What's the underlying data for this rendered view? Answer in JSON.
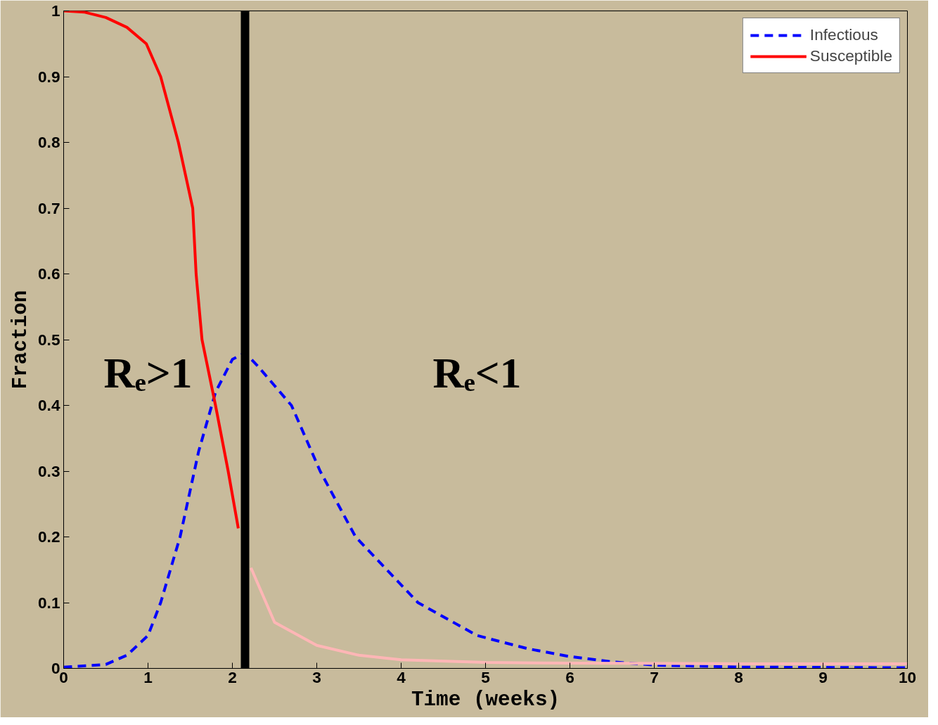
{
  "chart_data": {
    "type": "line",
    "xlabel": "Time (weeks)",
    "ylabel": "Fraction",
    "xlim": [
      0,
      10
    ],
    "ylim": [
      0,
      1
    ],
    "xticks": [
      0,
      1,
      2,
      3,
      4,
      5,
      6,
      7,
      8,
      9,
      10
    ],
    "yticks": [
      0,
      0.1,
      0.2,
      0.3,
      0.4,
      0.5,
      0.6,
      0.7,
      0.8,
      0.9,
      1
    ],
    "grid": false,
    "legend": "top right",
    "series": [
      {
        "name": "Infectious",
        "color": "#0000ff",
        "line_style": "dashed",
        "x": [
          0,
          0.5,
          0.75,
          1,
          1.15,
          1.38,
          1.6,
          1.8,
          2.0,
          2.15,
          2.3,
          2.5,
          2.7,
          3.04,
          3.46,
          4.2,
          4.9,
          5.5,
          6,
          6.5,
          7,
          8,
          10
        ],
        "values": [
          0.002,
          0.006,
          0.02,
          0.05,
          0.1,
          0.2,
          0.33,
          0.42,
          0.47,
          0.48,
          0.46,
          0.43,
          0.4,
          0.3,
          0.2,
          0.1,
          0.05,
          0.03,
          0.018,
          0.01,
          0.005,
          0.002,
          0.001
        ]
      },
      {
        "name": "Susceptible",
        "color": "#ff0000",
        "line_style": "solid",
        "x": [
          0,
          0.25,
          0.5,
          0.75,
          0.98,
          1.15,
          1.36,
          1.53,
          1.57,
          1.64,
          1.8,
          1.95,
          2.07
        ],
        "values": [
          1,
          0.998,
          0.99,
          0.975,
          0.95,
          0.9,
          0.8,
          0.7,
          0.6,
          0.5,
          0.4,
          0.3,
          0.213
        ]
      },
      {
        "color": "#ffb6b6",
        "line_style": "solid",
        "x": [
          2.22,
          2.5,
          3,
          3.5,
          4,
          5,
          6,
          8,
          10
        ],
        "values": [
          0.153,
          0.07,
          0.035,
          0.02,
          0.013,
          0.009,
          0.008,
          0.007,
          0.007
        ]
      }
    ],
    "ref_lines": [
      {
        "axis": "x",
        "value": 2.15,
        "color": "#000000"
      }
    ],
    "annotations": [
      "Rₑ>1",
      "Rₑ<1"
    ]
  }
}
